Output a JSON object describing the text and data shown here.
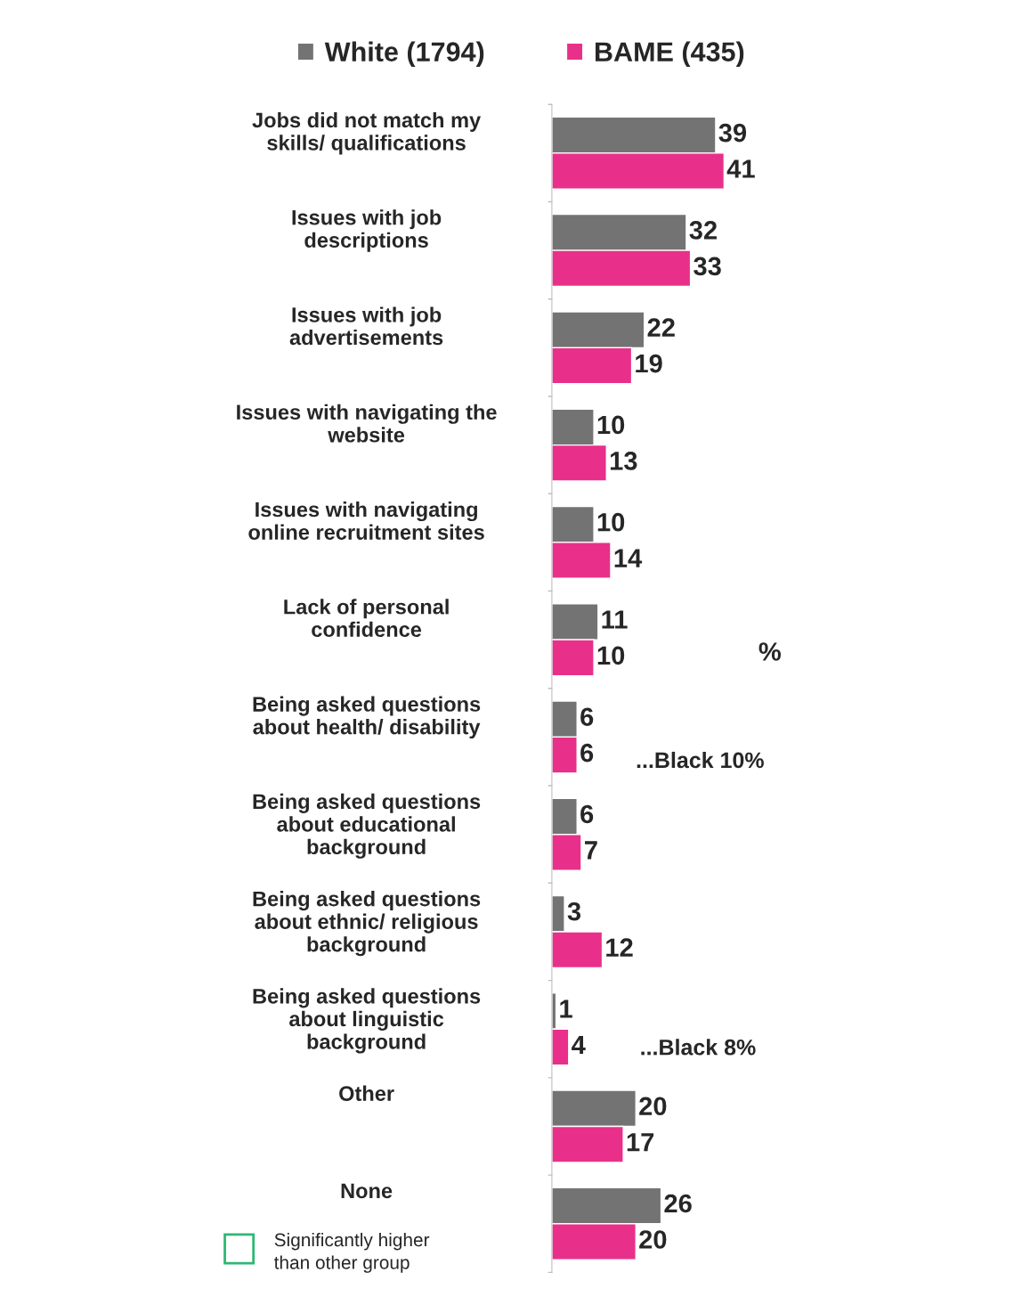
{
  "chart_data": {
    "type": "bar",
    "orientation": "horizontal",
    "data_labels": true,
    "legend": "top",
    "grid": false,
    "categories": [
      "Jobs did not match my\nskills/ qualifications",
      "Issues with job\ndescriptions",
      "Issues with job\nadvertisements",
      "Issues with navigating the\nwebsite",
      "Issues with navigating\nonline recruitment sites",
      "Lack of personal\nconfidence",
      "Being asked questions\nabout health/ disability",
      "Being asked questions\nabout educational\nbackground",
      "Being asked questions\nabout ethnic/ religious\nbackground",
      "Being asked questions\nabout linguistic\nbackground",
      "Other",
      "None"
    ],
    "series": [
      {
        "name": "White (1794)",
        "color": "#737373",
        "values": [
          39,
          32,
          22,
          10,
          10,
          11,
          6,
          6,
          3,
          1,
          20,
          26
        ]
      },
      {
        "name": "BAME (435)",
        "color": "#e8308a",
        "values": [
          41,
          33,
          19,
          13,
          14,
          10,
          6,
          7,
          12,
          4,
          17,
          20
        ]
      }
    ],
    "annotations": [
      "%",
      "...Black 10%",
      "...Black 8%",
      "Significantly higher\nthan other group"
    ]
  }
}
